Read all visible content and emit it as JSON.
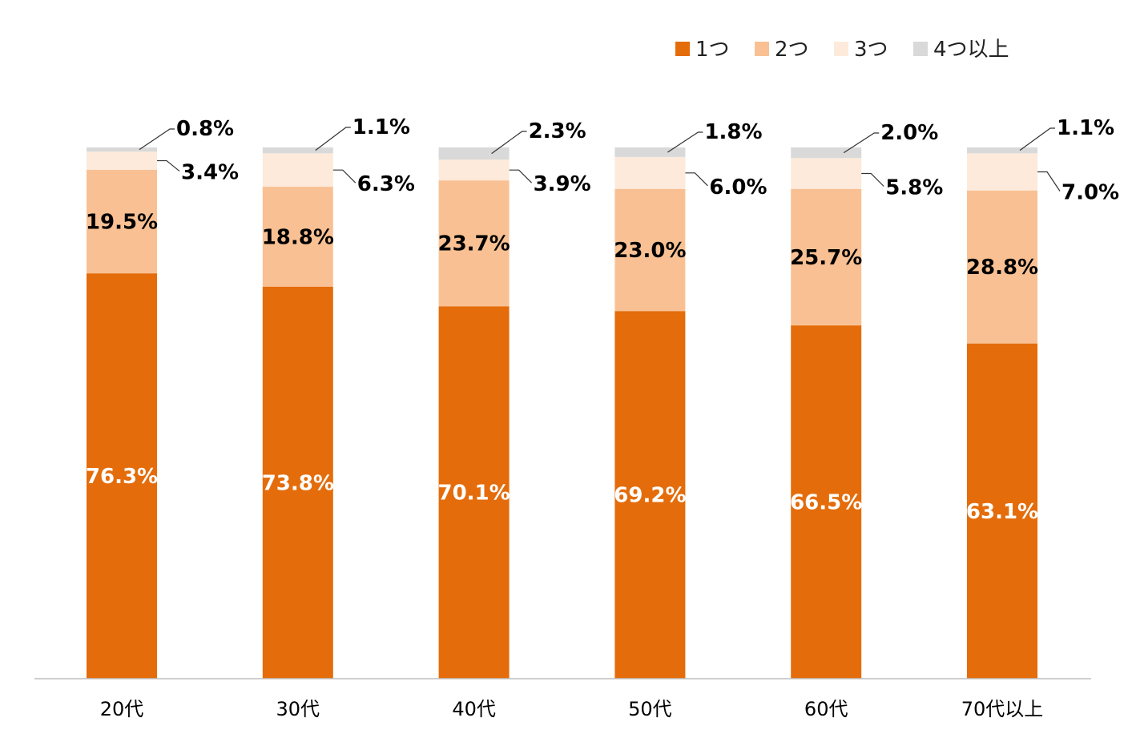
{
  "chart_data": {
    "type": "bar",
    "stacked": true,
    "categories": [
      "20代",
      "30代",
      "40代",
      "50代",
      "60代",
      "70代以上"
    ],
    "series": [
      {
        "name": "1つ",
        "color": "#E46C0A",
        "values": [
          76.3,
          73.8,
          70.1,
          69.2,
          66.5,
          63.1
        ]
      },
      {
        "name": "2つ",
        "color": "#F9C193",
        "values": [
          19.5,
          18.8,
          23.7,
          23.0,
          25.7,
          28.8
        ]
      },
      {
        "name": "3つ",
        "color": "#FDEADA",
        "values": [
          3.4,
          6.3,
          3.9,
          6.0,
          5.8,
          7.0
        ]
      },
      {
        "name": "4つ以上",
        "color": "#D9D9D9",
        "values": [
          0.8,
          1.1,
          2.3,
          1.8,
          2.0,
          1.1
        ]
      }
    ],
    "value_labels": [
      [
        "76.3%",
        "73.8%",
        "70.1%",
        "69.2%",
        "66.5%",
        "63.1%"
      ],
      [
        "19.5%",
        "18.8%",
        "23.7%",
        "23.0%",
        "25.7%",
        "28.8%"
      ],
      [
        "3.4%",
        "6.3%",
        "3.9%",
        "6.0%",
        "5.8%",
        "7.0%"
      ],
      [
        "0.8%",
        "1.1%",
        "2.3%",
        "1.8%",
        "2.0%",
        "1.1%"
      ]
    ],
    "ylim": [
      0,
      100
    ],
    "grid": false,
    "legend_position": "top-right",
    "title": "",
    "xlabel": "",
    "ylabel": ""
  }
}
